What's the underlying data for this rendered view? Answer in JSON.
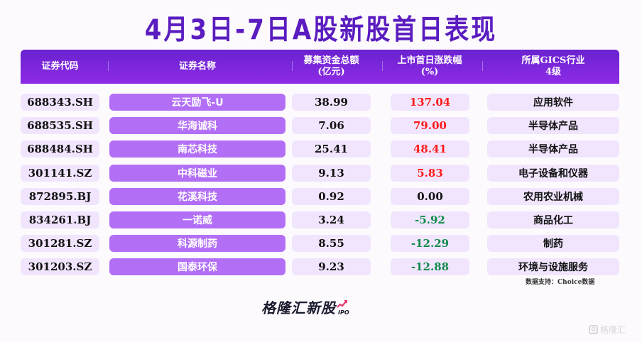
{
  "title": "4月3日-7日A股新股首日表现",
  "header": {
    "code": "证券代码",
    "name": "证券名称",
    "fund_line1": "募集资金总额",
    "fund_line2": "(亿元)",
    "change_line1": "上市首日涨跌幅",
    "change_line2": "(%)",
    "industry_line1": "所属GICS行业",
    "industry_line2": "4级"
  },
  "colors": {
    "title": "#5a1cc0",
    "header_top": "#6a22cf",
    "header_bottom": "#8d2be6",
    "name_pill": "#b26ff5",
    "cell_pill": "#f1e5fe",
    "up": "#ff1a1a",
    "down": "#108a4a",
    "flat": "#111111"
  },
  "rows": [
    {
      "code": "688343.SH",
      "name": "云天励飞-U",
      "fund": "38.99",
      "change": "137.04",
      "dir": "up",
      "industry": "应用软件"
    },
    {
      "code": "688535.SH",
      "name": "华海诚科",
      "fund": "7.06",
      "change": "79.00",
      "dir": "up",
      "industry": "半导体产品"
    },
    {
      "code": "688484.SH",
      "name": "南芯科技",
      "fund": "25.41",
      "change": "48.41",
      "dir": "up",
      "industry": "半导体产品"
    },
    {
      "code": "301141.SZ",
      "name": "中科磁业",
      "fund": "9.13",
      "change": "5.83",
      "dir": "up",
      "industry": "电子设备和仪器"
    },
    {
      "code": "872895.BJ",
      "name": "花溪科技",
      "fund": "0.92",
      "change": "0.00",
      "dir": "flat",
      "industry": "农用农业机械"
    },
    {
      "code": "834261.BJ",
      "name": "一诺威",
      "fund": "3.24",
      "change": "-5.92",
      "dir": "down",
      "industry": "商品化工"
    },
    {
      "code": "301281.SZ",
      "name": "科源制药",
      "fund": "8.55",
      "change": "-12.29",
      "dir": "down",
      "industry": "制药"
    },
    {
      "code": "301203.SZ",
      "name": "国泰环保",
      "fund": "9.23",
      "change": "-12.88",
      "dir": "down",
      "industry": "环境与设施服务"
    }
  ],
  "source": "数据支持：Choice数据",
  "logo": {
    "text": "格隆汇新股",
    "sub": "IPO",
    "icon": "trend-arrow-icon"
  },
  "watermark": {
    "icon": "gelonghui-g-icon",
    "text": "格隆汇"
  }
}
